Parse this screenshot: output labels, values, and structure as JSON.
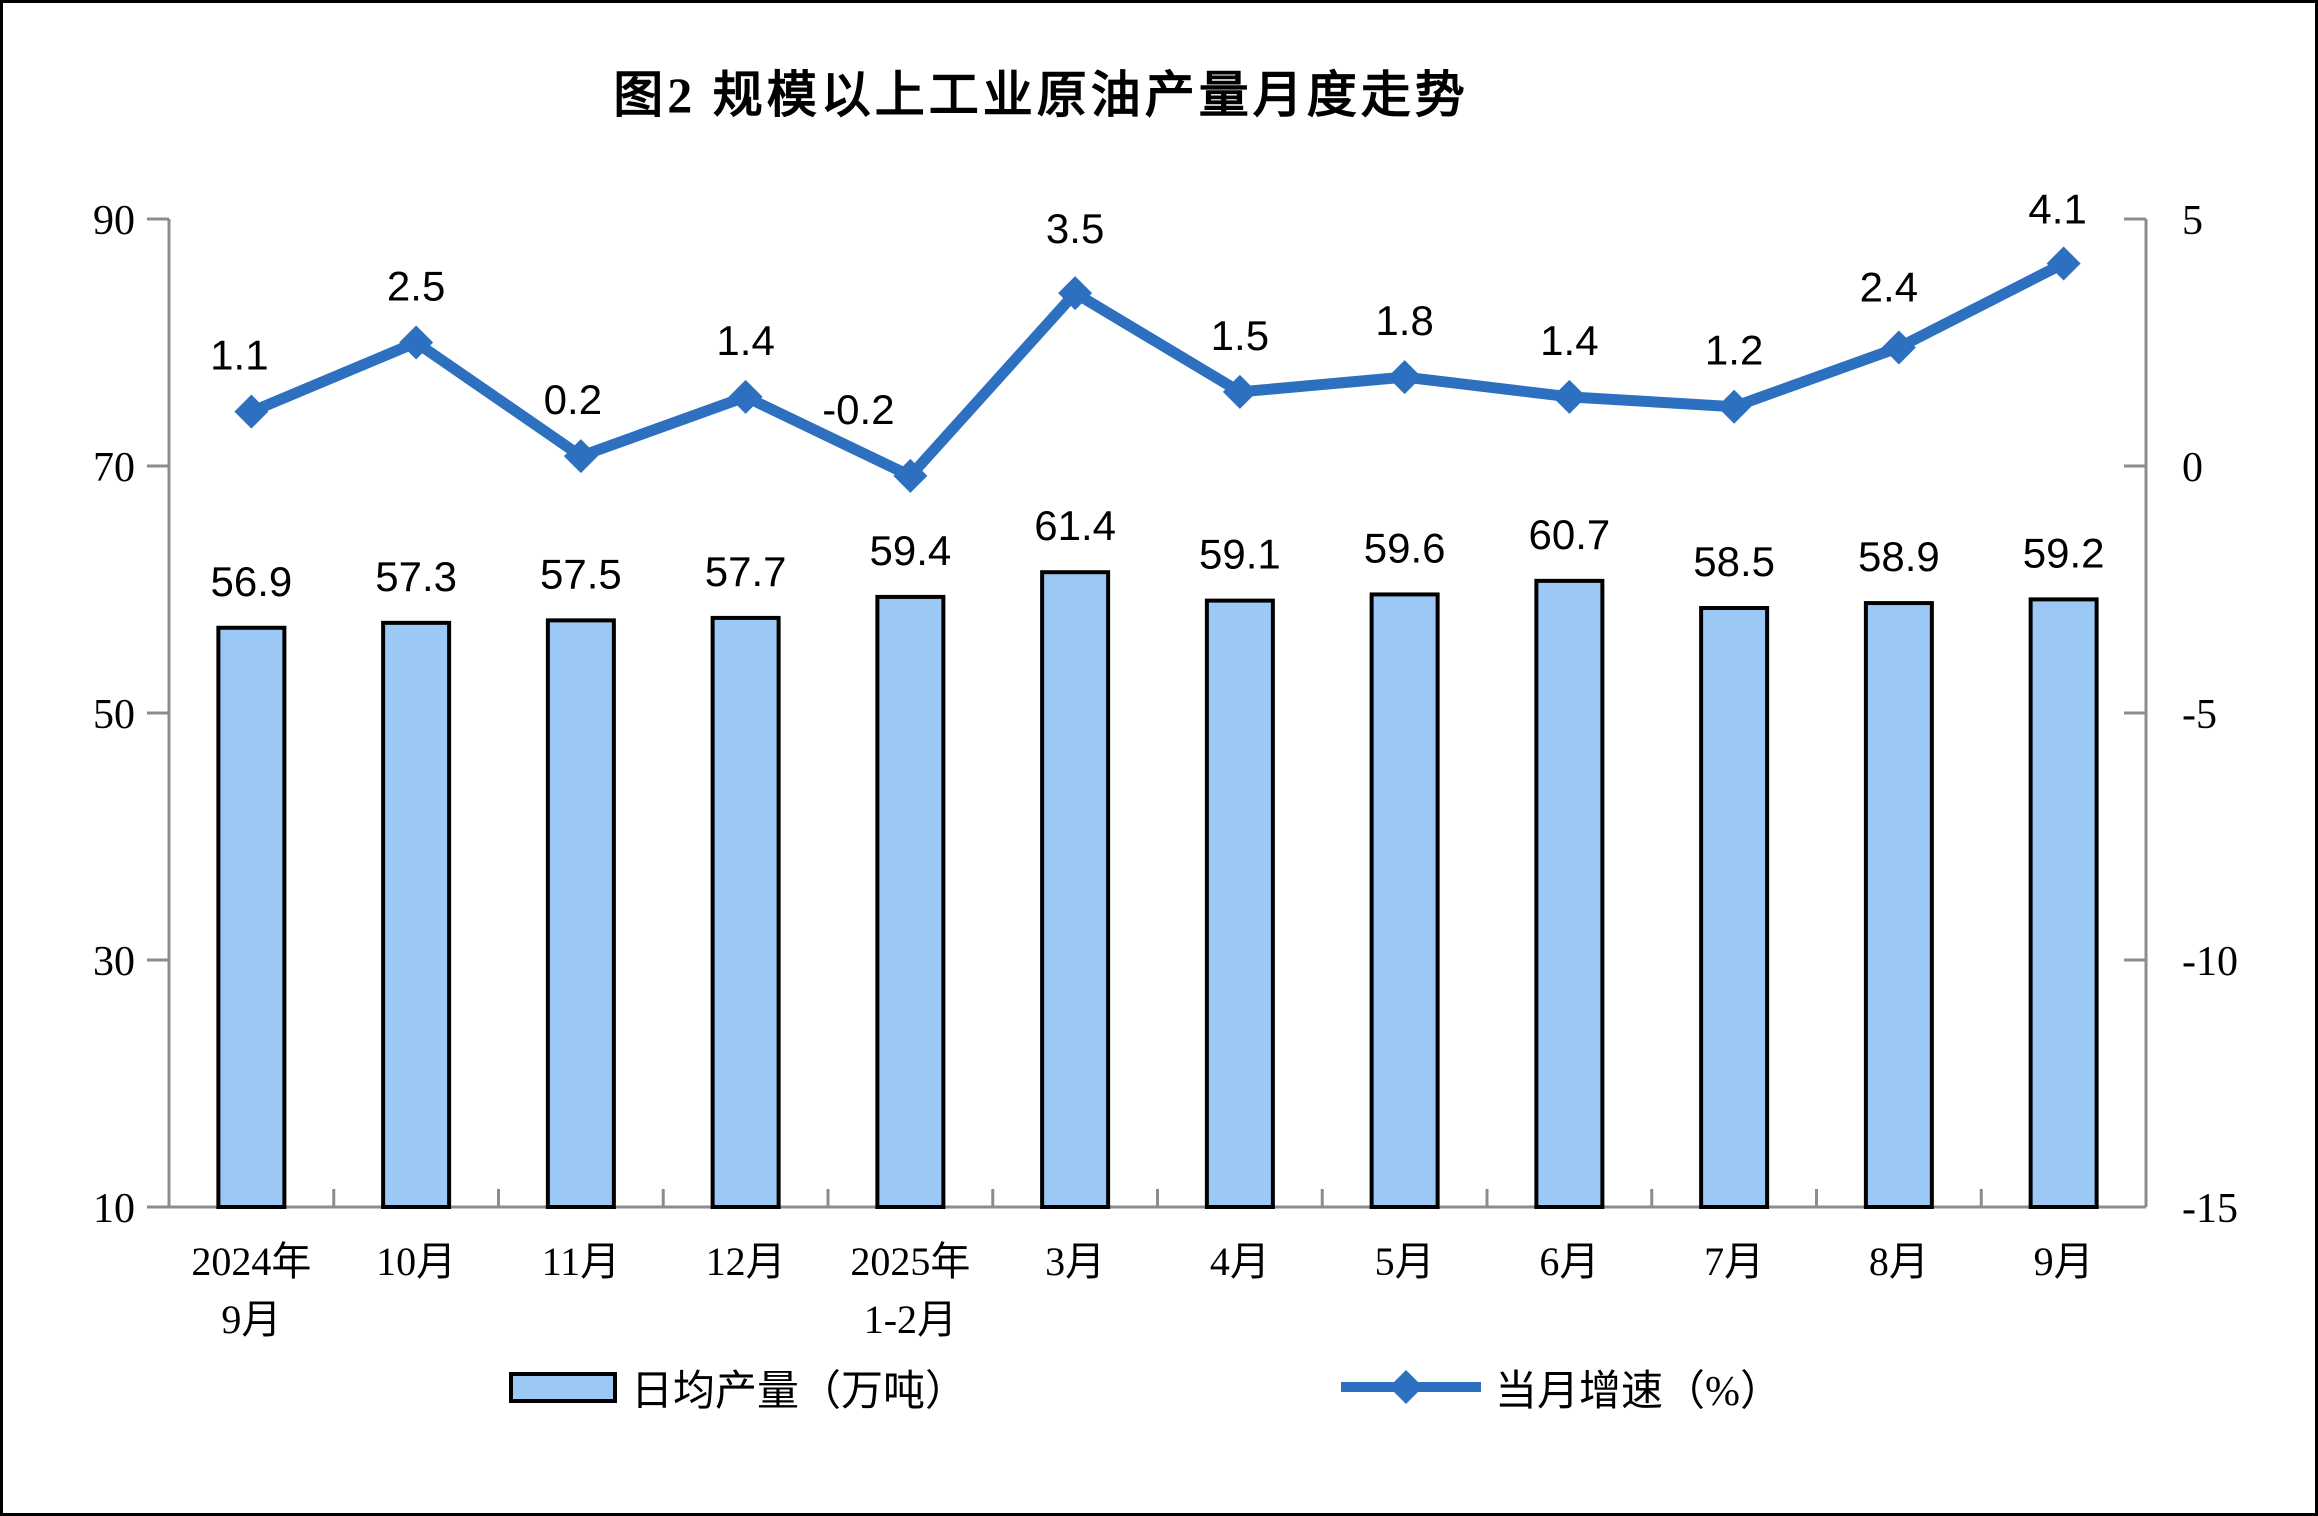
{
  "title": "图2 规模以上工业原油产量月度走势",
  "legend": {
    "bar_label": "日均产量（万吨）",
    "line_label": "当月增速（%）"
  },
  "colors": {
    "bar_fill": "#9CC8F5",
    "bar_border": "#000000",
    "line": "#2D70C0",
    "axis": "#8C8C8C",
    "text": "#000000"
  },
  "chart_data": {
    "type": "bar+line combo",
    "title": "图2 规模以上工业原油产量月度走势",
    "categories": [
      [
        "2024年",
        "9月"
      ],
      [
        "10月"
      ],
      [
        "11月"
      ],
      [
        "12月"
      ],
      [
        "2025年",
        "1-2月"
      ],
      [
        "3月"
      ],
      [
        "4月"
      ],
      [
        "5月"
      ],
      [
        "6月"
      ],
      [
        "7月"
      ],
      [
        "8月"
      ],
      [
        "9月"
      ]
    ],
    "series": [
      {
        "name": "日均产量（万吨）",
        "type": "bar",
        "axis": "left",
        "values": [
          56.9,
          57.3,
          57.5,
          57.7,
          59.4,
          61.4,
          59.1,
          59.6,
          60.7,
          58.5,
          58.9,
          59.2
        ]
      },
      {
        "name": "当月增速（%）",
        "type": "line",
        "axis": "right",
        "values": [
          1.1,
          2.5,
          0.2,
          1.4,
          -0.2,
          3.5,
          1.5,
          1.8,
          1.4,
          1.2,
          2.4,
          4.1
        ]
      }
    ],
    "left_axis": {
      "min": 10,
      "max": 90,
      "ticks": [
        10,
        30,
        50,
        70,
        90
      ]
    },
    "right_axis": {
      "min": -15,
      "max": 5,
      "ticks": [
        -15,
        -10,
        -5,
        0,
        5
      ]
    },
    "grid": false,
    "legend_position": "bottom"
  }
}
